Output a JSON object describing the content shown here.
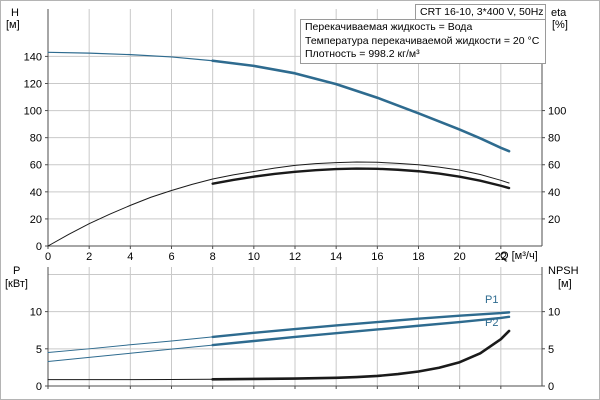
{
  "header": {
    "title": "CRT 16-10, 3*400 V, 50Hz"
  },
  "info_box": {
    "lines": [
      "Перекачиваемая жидкость = Вода",
      "Температура перекачиваемой жидкости = 20 °C",
      "Плотность = 998.2 кг/м³"
    ]
  },
  "axis_labels": {
    "h": "H",
    "h_unit": "[м]",
    "eta": "eta",
    "eta_unit": "[%]",
    "q": "Q [м³/ч]",
    "p": "P",
    "p_unit": "[кВт]",
    "npsh": "NPSH",
    "npsh_unit": "[м]"
  },
  "curve_labels": {
    "p1": "P1",
    "p2": "P2"
  },
  "colors": {
    "curve_blue": "#2e6b8f",
    "curve_black": "#1a1a1a",
    "grid": "#c9c9c9",
    "axis": "#4d4d4d"
  },
  "chart_data": [
    {
      "type": "line",
      "xlabel": "Q [м³/ч]",
      "ylabel_left": "H [м]",
      "ylabel_right": "eta [%]",
      "x_range": [
        0,
        24
      ],
      "x_ticks": [
        0,
        2,
        4,
        6,
        8,
        10,
        12,
        14,
        16,
        18,
        20,
        22
      ],
      "y_range": [
        0,
        175
      ],
      "y_ticks_left": [
        0,
        20,
        40,
        60,
        80,
        100,
        120,
        140
      ],
      "y_ticks_right": [
        20,
        40,
        60,
        80,
        100
      ],
      "y_grid": [
        20,
        40,
        60,
        80,
        100,
        120,
        140
      ],
      "series": [
        {
          "name": "head",
          "color": "blue",
          "width": 1.2,
          "duty_from": 8,
          "duty_width": 2.6,
          "points": [
            [
              0,
              143
            ],
            [
              2,
              142.4
            ],
            [
              4,
              141.3
            ],
            [
              6,
              139.6
            ],
            [
              8,
              136.8
            ],
            [
              10,
              133
            ],
            [
              12,
              127.5
            ],
            [
              14,
              119.5
            ],
            [
              16,
              109.5
            ],
            [
              18,
              98
            ],
            [
              20,
              86
            ],
            [
              21,
              79.5
            ],
            [
              22,
              72.5
            ],
            [
              22.4,
              70
            ]
          ]
        },
        {
          "name": "eta-pump",
          "color": "black",
          "width": 1,
          "points": [
            [
              0,
              0
            ],
            [
              1,
              8.5
            ],
            [
              2,
              16.5
            ],
            [
              3,
              23.5
            ],
            [
              4,
              30
            ],
            [
              5,
              36
            ],
            [
              6,
              41
            ],
            [
              7,
              45.5
            ],
            [
              8,
              49.5
            ],
            [
              9,
              52.5
            ],
            [
              10,
              55
            ],
            [
              11,
              57.5
            ],
            [
              12,
              59.5
            ],
            [
              13,
              60.8
            ],
            [
              14,
              61.6
            ],
            [
              15,
              62
            ],
            [
              16,
              61.8
            ],
            [
              17,
              61
            ],
            [
              18,
              60
            ],
            [
              19,
              58.2
            ],
            [
              20,
              56
            ],
            [
              21,
              52.8
            ],
            [
              22,
              48.5
            ],
            [
              22.4,
              46.5
            ]
          ]
        },
        {
          "name": "eta-duty",
          "color": "black",
          "width": 2.4,
          "points": [
            [
              8,
              46
            ],
            [
              9,
              48.8
            ],
            [
              10,
              51.2
            ],
            [
              11,
              53.2
            ],
            [
              12,
              54.8
            ],
            [
              13,
              56
            ],
            [
              14,
              56.8
            ],
            [
              15,
              57.2
            ],
            [
              16,
              57
            ],
            [
              17,
              56.3
            ],
            [
              18,
              55.2
            ],
            [
              19,
              53.5
            ],
            [
              20,
              51.2
            ],
            [
              21,
              48.2
            ],
            [
              22,
              44.5
            ],
            [
              22.4,
              42.8
            ]
          ]
        }
      ]
    },
    {
      "type": "line",
      "xlabel": "Q [м³/ч]",
      "ylabel_left": "P [кВт]",
      "ylabel_right": "NPSH [м]",
      "x_range": [
        0,
        24
      ],
      "x_ticks": [
        0,
        2,
        4,
        6,
        8,
        10,
        12,
        14,
        16,
        18,
        20,
        22
      ],
      "y_range": [
        0,
        16
      ],
      "y_ticks_left": [
        0,
        5,
        10
      ],
      "y_ticks_right": [
        0,
        5,
        10
      ],
      "y_grid": [
        5,
        10,
        15
      ],
      "series": [
        {
          "name": "P1",
          "color": "blue",
          "width": 1,
          "duty_from": 8,
          "duty_width": 2.4,
          "points": [
            [
              0,
              4.5
            ],
            [
              2,
              5.0
            ],
            [
              4,
              5.55
            ],
            [
              6,
              6.05
            ],
            [
              8,
              6.6
            ],
            [
              10,
              7.15
            ],
            [
              12,
              7.65
            ],
            [
              14,
              8.15
            ],
            [
              16,
              8.6
            ],
            [
              18,
              9.05
            ],
            [
              20,
              9.45
            ],
            [
              22,
              9.8
            ],
            [
              22.4,
              9.9
            ]
          ]
        },
        {
          "name": "P2",
          "color": "blue",
          "width": 1,
          "duty_from": 8,
          "duty_width": 2.4,
          "points": [
            [
              0,
              3.3
            ],
            [
              2,
              3.85
            ],
            [
              4,
              4.4
            ],
            [
              6,
              4.95
            ],
            [
              8,
              5.5
            ],
            [
              10,
              6.05
            ],
            [
              12,
              6.6
            ],
            [
              14,
              7.1
            ],
            [
              16,
              7.6
            ],
            [
              18,
              8.1
            ],
            [
              20,
              8.6
            ],
            [
              22,
              9.15
            ],
            [
              22.4,
              9.3
            ]
          ]
        },
        {
          "name": "NPSH",
          "color": "black",
          "width": 1,
          "duty_from": 8,
          "duty_width": 2.6,
          "points": [
            [
              0,
              0.85
            ],
            [
              2,
              0.85
            ],
            [
              4,
              0.85
            ],
            [
              6,
              0.87
            ],
            [
              8,
              0.9
            ],
            [
              10,
              0.95
            ],
            [
              12,
              1.0
            ],
            [
              14,
              1.1
            ],
            [
              15,
              1.2
            ],
            [
              16,
              1.35
            ],
            [
              17,
              1.6
            ],
            [
              18,
              1.95
            ],
            [
              19,
              2.45
            ],
            [
              20,
              3.2
            ],
            [
              21,
              4.4
            ],
            [
              22,
              6.3
            ],
            [
              22.4,
              7.4
            ]
          ]
        }
      ]
    }
  ]
}
